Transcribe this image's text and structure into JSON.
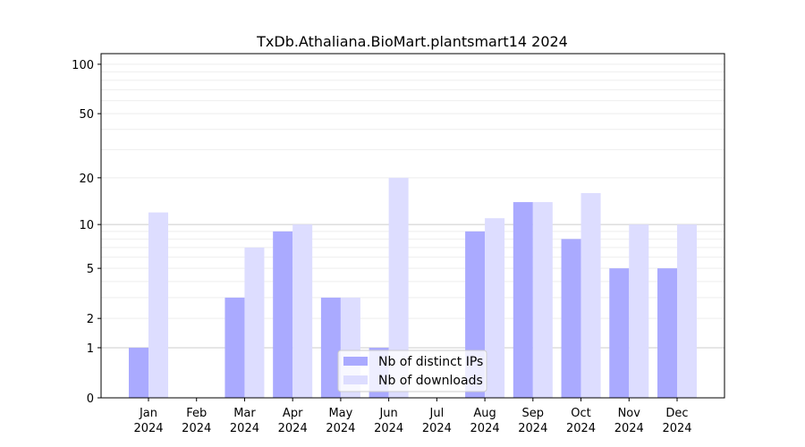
{
  "chart_data": {
    "type": "bar",
    "title": "TxDb.Athaliana.BioMart.plantsmart14 2024",
    "xlabel": "",
    "ylabel": "",
    "yscale": "log(1+y)",
    "ylim": [
      0,
      116
    ],
    "yticks": [
      0,
      1,
      2,
      5,
      10,
      20,
      50,
      100
    ],
    "categories": [
      "Jan\n2024",
      "Feb\n2024",
      "Mar\n2024",
      "Apr\n2024",
      "May\n2024",
      "Jun\n2024",
      "Jul\n2024",
      "Aug\n2024",
      "Sep\n2024",
      "Oct\n2024",
      "Nov\n2024",
      "Dec\n2024"
    ],
    "series": [
      {
        "name": "Nb of distinct IPs",
        "color": "#aaaaff",
        "values": [
          1,
          0,
          3,
          9,
          3,
          1,
          0,
          9,
          14,
          8,
          5,
          5
        ]
      },
      {
        "name": "Nb of downloads",
        "color": "#ddddff",
        "values": [
          12,
          0,
          7,
          10,
          3,
          20,
          0,
          11,
          14,
          16,
          10,
          10
        ]
      }
    ],
    "legend": "lower-center",
    "grid": true
  }
}
